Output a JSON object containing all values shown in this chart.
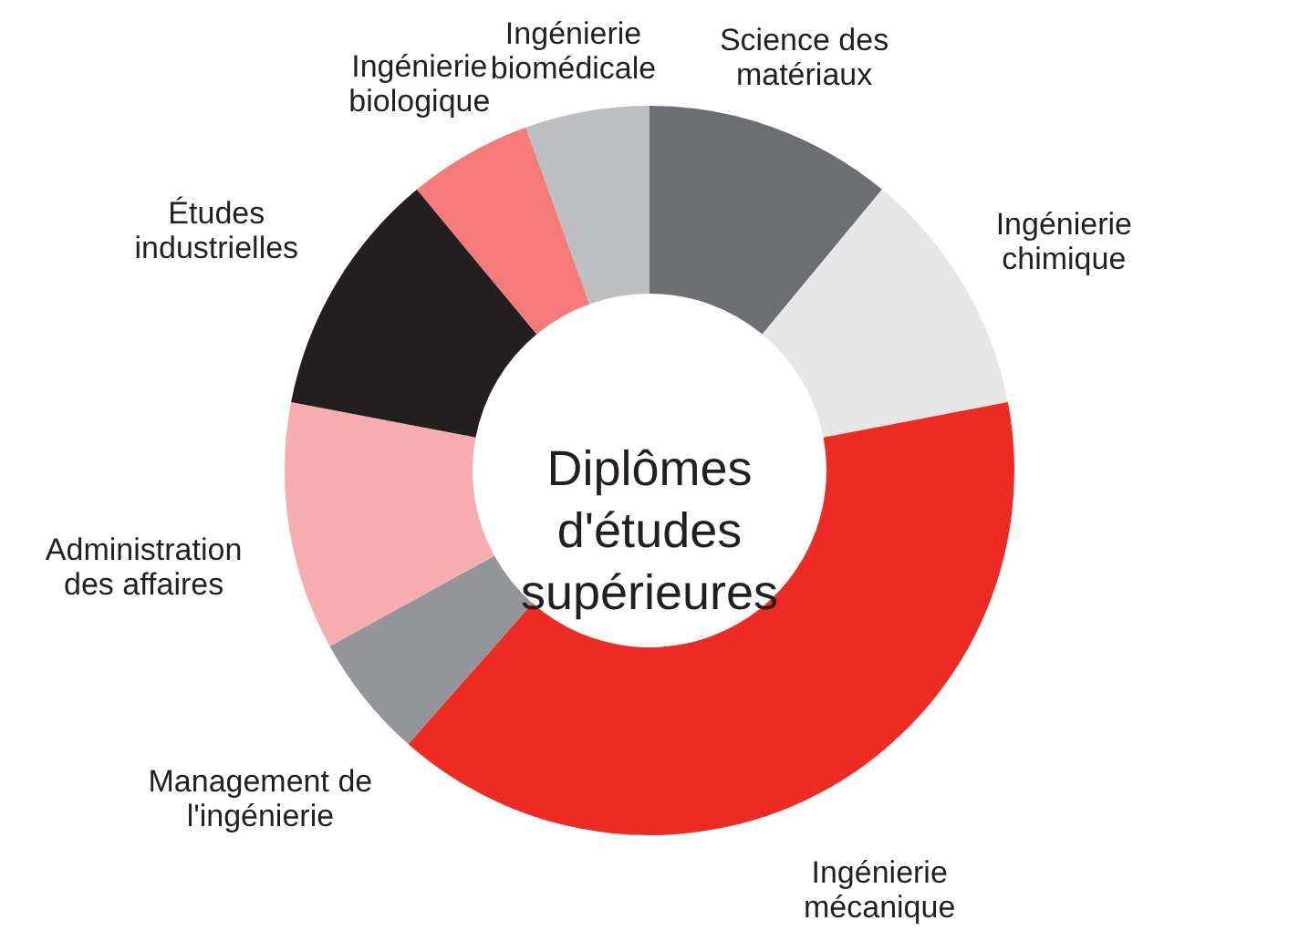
{
  "chart_data": {
    "type": "donut",
    "title": "Diplômes d'études supérieures",
    "categories": [
      "Science des matériaux",
      "Ingénierie chimique",
      "Ingénierie mécanique",
      "Management de l'ingénierie",
      "Administration des affaires",
      "Études industrielles",
      "Ingénierie biologique",
      "Ingénierie biomédicale"
    ],
    "values": [
      11,
      11,
      39.5,
      5.5,
      11,
      11,
      5.5,
      5.5
    ],
    "colors": [
      "#6d6e71",
      "#e6e6e6",
      "#ee2a24",
      "#939598",
      "#f7adb0",
      "#231f20",
      "#f47b7a",
      "#bcbec0"
    ]
  }
}
